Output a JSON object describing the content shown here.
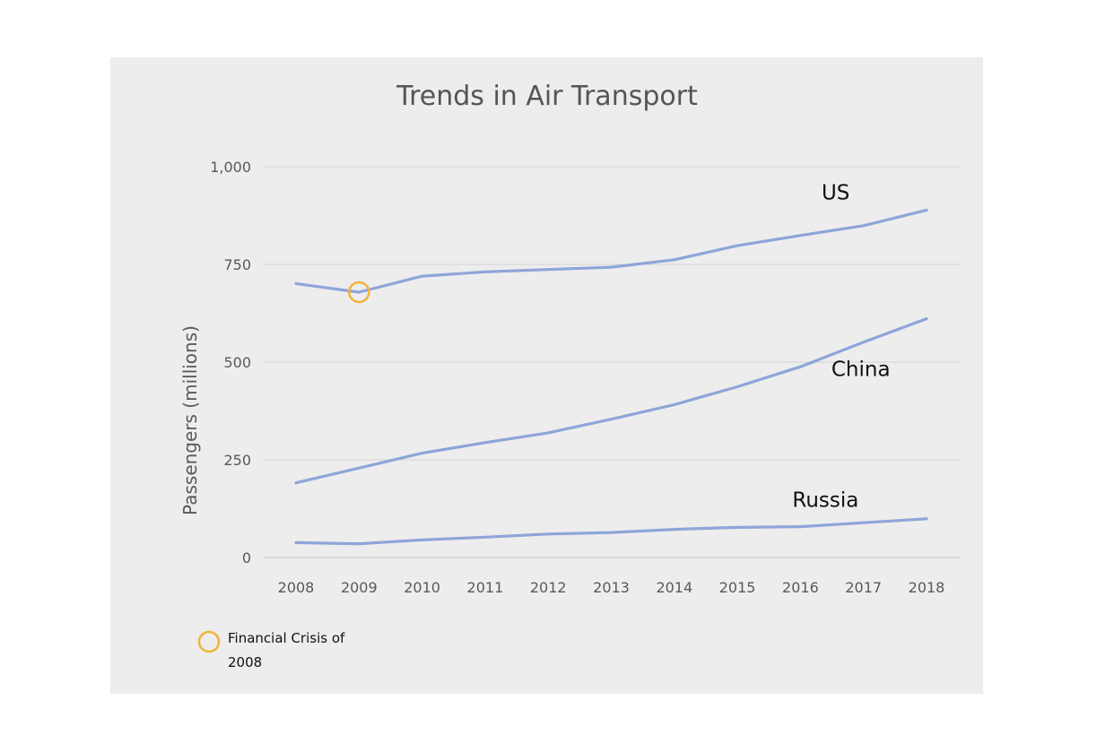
{
  "chart_data": {
    "type": "line",
    "title": "Trends in Air Transport",
    "ylabel": "Passengers (millions)",
    "xlabel": "",
    "x": [
      "2008",
      "2009",
      "2010",
      "2011",
      "2012",
      "2013",
      "2014",
      "2015",
      "2016",
      "2017",
      "2018"
    ],
    "ylim": [
      0,
      1000
    ],
    "yticks": [
      0,
      250,
      500,
      750,
      1000
    ],
    "ytick_labels": [
      "0",
      "250",
      "500",
      "750",
      "1,000"
    ],
    "grid": true,
    "series": [
      {
        "name": "US",
        "values": [
          701,
          679,
          720,
          731,
          737,
          743,
          762,
          798,
          824,
          849,
          889
        ],
        "color": "#8ea5d8"
      },
      {
        "name": "China",
        "values": [
          191,
          229,
          267,
          294,
          319,
          354,
          391,
          437,
          488,
          551,
          611
        ],
        "color": "#8ea5d8"
      },
      {
        "name": "Russia",
        "values": [
          38,
          35,
          45,
          52,
          60,
          64,
          72,
          77,
          79,
          89,
          99
        ],
        "color": "#8ea5d8"
      }
    ],
    "annotations": [
      {
        "label": "Financial Crisis of 2008",
        "series": "US",
        "x": "2009",
        "y": 679,
        "marker": "circle",
        "color": "#f0b43c"
      }
    ],
    "legend": {
      "placement": "bottom-left",
      "items": [
        {
          "label_line1": "Financial Crisis of",
          "label_line2": "2008",
          "marker": "circle",
          "color": "#f0b43c"
        }
      ]
    }
  }
}
